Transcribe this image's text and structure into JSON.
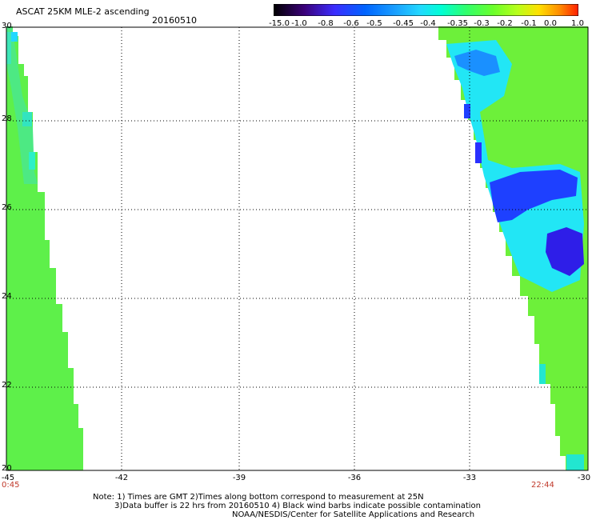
{
  "header": {
    "title": "ASCAT 25KM MLE-2 ascending",
    "date": "20160510"
  },
  "colorbar": {
    "labels": [
      "-15.0",
      "-1.0",
      "-0.8",
      "-0.6",
      "-0.5",
      "-0.45",
      "-0.4",
      "-0.35",
      "-0.3",
      "-0.2",
      "-0.1",
      "0.0",
      "1.0"
    ],
    "colors": [
      "#000000",
      "#3a0078",
      "#3b2cff",
      "#0064ff",
      "#1aa0ff",
      "#22d8ff",
      "#00ffd4",
      "#2eff6e",
      "#6aff2a",
      "#b8ff1a",
      "#ffe000",
      "#ff8a00",
      "#ff1e00"
    ]
  },
  "axes": {
    "y_ticks": [
      "30",
      "28",
      "26",
      "24",
      "22",
      "20"
    ],
    "x_ticks": [
      "-45",
      "-42",
      "-39",
      "-36",
      "-33",
      "-30"
    ],
    "time_left": "0:45",
    "time_right": "22:44"
  },
  "notes": {
    "line1": "Note: 1) Times are GMT 2)Times along bottom correspond to measurement at 25N",
    "line2": "3)Data buffer is 22 hrs from 20160510 4) Black wind barbs indicate possible contamination",
    "line3": "NOAA/NESDIS/Center for Satellite Applications and Research"
  }
}
